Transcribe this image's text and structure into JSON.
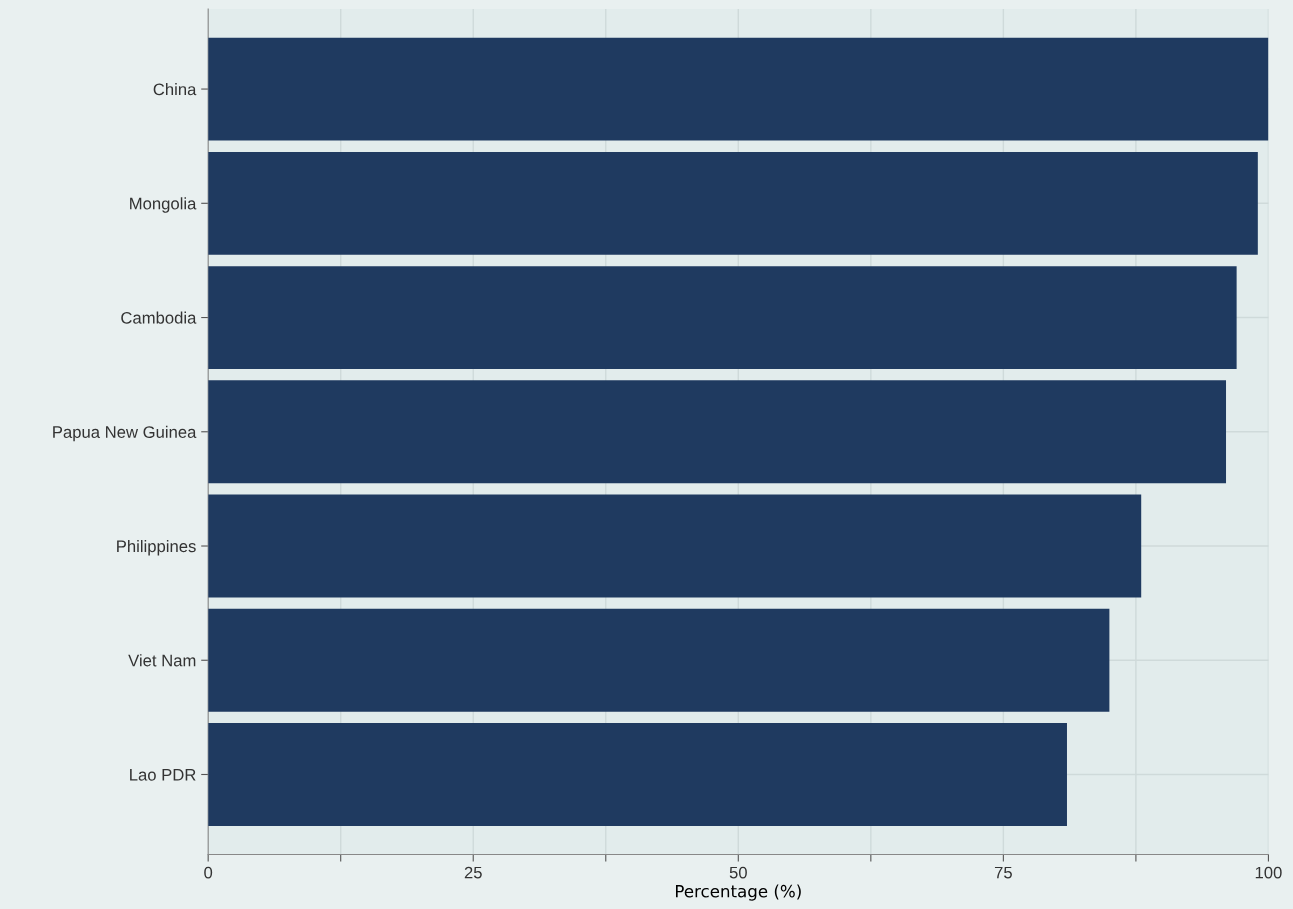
{
  "chart_data": {
    "type": "bar",
    "orientation": "horizontal",
    "xlabel": "Percentage (%)",
    "categories": [
      "China",
      "Mongolia",
      "Cambodia",
      "Papua New Guinea",
      "Philippines",
      "Viet Nam",
      "Lao PDR"
    ],
    "values": [
      100,
      99,
      97,
      96,
      88,
      85,
      81
    ],
    "color": "#1f3a60",
    "xlim": [
      0,
      100
    ],
    "xticks": [
      0,
      {
        "value": 12.5,
        "label": null
      },
      25,
      {
        "value": 37.5,
        "label": null
      },
      50,
      {
        "value": 62.5,
        "label": null
      },
      75,
      {
        "value": 87.5,
        "label": null
      },
      100
    ],
    "grid": true
  }
}
